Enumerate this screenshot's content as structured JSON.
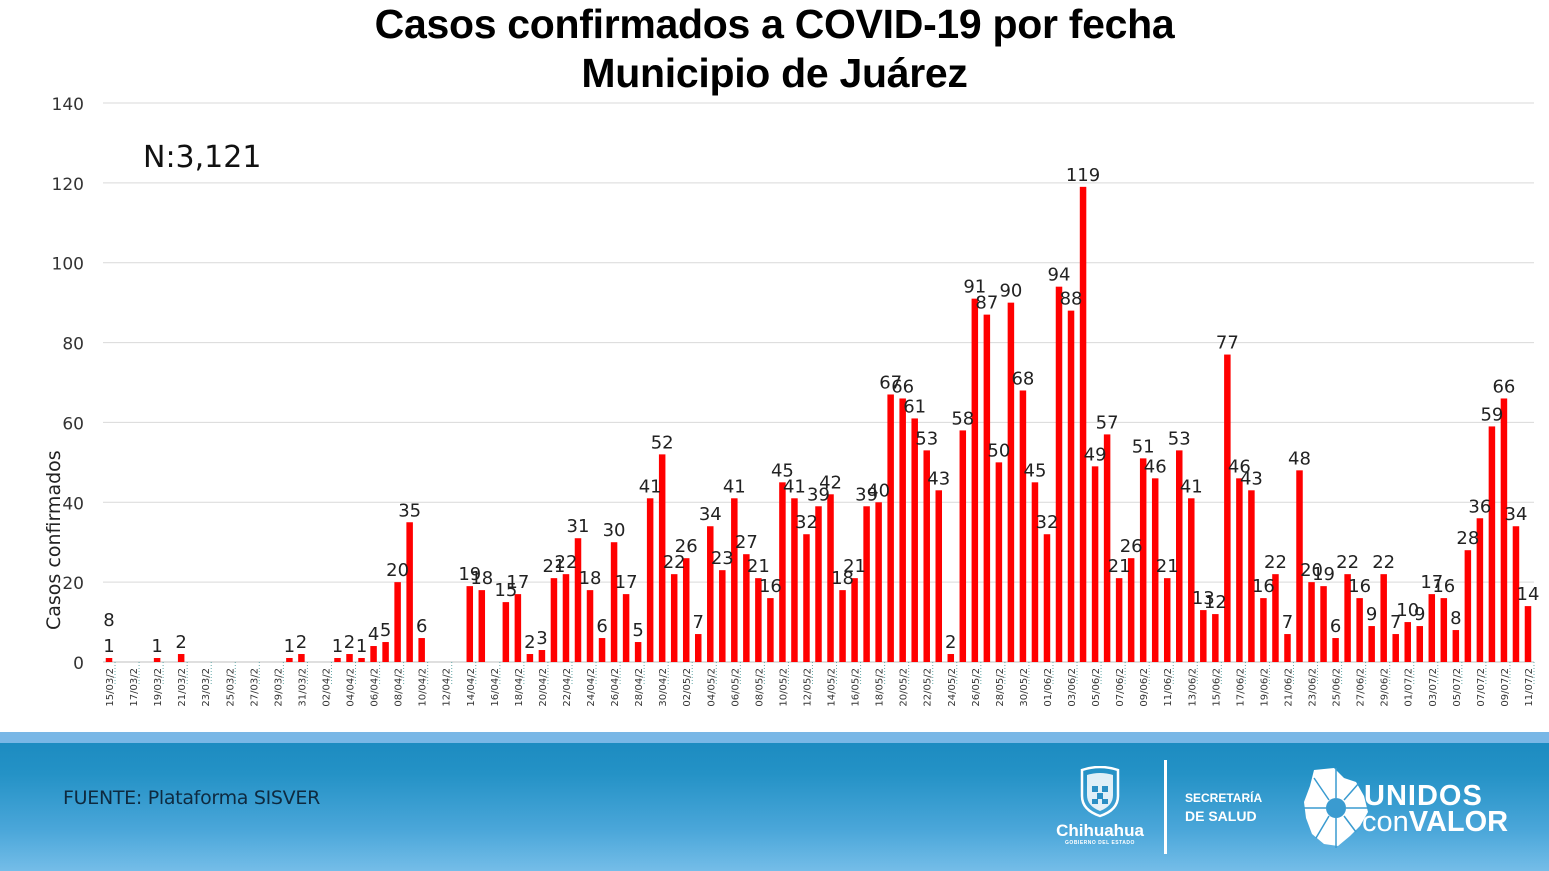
{
  "chart_data": {
    "type": "bar",
    "title": "Casos confirmados a COVID-19 por fecha",
    "subtitle": "Municipio de Juárez",
    "xlabel": "",
    "ylabel": "Casos confirmados",
    "ylim": [
      0,
      140
    ],
    "yticks": [
      0,
      20,
      40,
      60,
      80,
      100,
      120,
      140
    ],
    "grid": true,
    "legend": "none",
    "bar_color": "#ff0000",
    "annotation": "N:3,121",
    "extra_labels": [
      {
        "category": "15/03/2",
        "text": "8"
      }
    ],
    "tick_label_every": 2,
    "categories": [
      "15/03/2",
      "16/03/2",
      "17/03/2",
      "18/03/2",
      "19/03/2",
      "20/03/2",
      "21/03/2",
      "22/03/2",
      "23/03/2",
      "24/03/2",
      "25/03/2",
      "26/03/2",
      "27/03/2",
      "28/03/2",
      "29/03/2",
      "30/03/2",
      "31/03/2",
      "01/04/2",
      "02/04/2",
      "03/04/2",
      "04/04/2",
      "05/04/2",
      "06/04/2",
      "07/04/2",
      "08/04/2",
      "09/04/2",
      "10/04/2",
      "11/04/2",
      "12/04/2",
      "13/04/2",
      "14/04/2",
      "15/04/2",
      "16/04/2",
      "17/04/2",
      "18/04/2",
      "19/04/2",
      "20/04/2",
      "21/04/2",
      "22/04/2",
      "23/04/2",
      "24/04/2",
      "25/04/2",
      "26/04/2",
      "27/04/2",
      "28/04/2",
      "29/04/2",
      "30/04/2",
      "01/05/2",
      "02/05/2",
      "03/05/2",
      "04/05/2",
      "05/05/2",
      "06/05/2",
      "07/05/2",
      "08/05/2",
      "09/05/2",
      "10/05/2",
      "11/05/2",
      "12/05/2",
      "13/05/2",
      "14/05/2",
      "15/05/2",
      "16/05/2",
      "17/05/2",
      "18/05/2",
      "19/05/2",
      "20/05/2",
      "21/05/2",
      "22/05/2",
      "23/05/2",
      "24/05/2",
      "25/05/2",
      "26/05/2",
      "27/05/2",
      "28/05/2",
      "29/05/2",
      "30/05/2",
      "31/05/2",
      "01/06/2",
      "02/06/2",
      "03/06/2",
      "04/06/2",
      "05/06/2",
      "06/06/2",
      "07/06/2",
      "08/06/2",
      "09/06/2",
      "10/06/2",
      "11/06/2",
      "12/06/2",
      "13/06/2",
      "14/06/2",
      "15/06/2",
      "16/06/2",
      "17/06/2",
      "18/06/2",
      "19/06/2",
      "20/06/2",
      "21/06/2",
      "22/06/2",
      "23/06/2",
      "24/06/2",
      "25/06/2",
      "26/06/2",
      "27/06/2",
      "28/06/2",
      "29/06/2",
      "30/06/2",
      "01/07/2",
      "02/07/2",
      "03/07/2",
      "04/07/2",
      "05/07/2",
      "06/07/2",
      "07/07/2",
      "08/07/2",
      "09/07/2",
      "10/07/2",
      "11/07/2"
    ],
    "values": [
      1,
      0,
      0,
      0,
      1,
      0,
      2,
      0,
      0,
      0,
      0,
      0,
      0,
      0,
      0,
      1,
      2,
      0,
      0,
      1,
      2,
      1,
      4,
      5,
      20,
      35,
      6,
      0,
      0,
      0,
      19,
      18,
      0,
      15,
      17,
      2,
      3,
      21,
      22,
      31,
      18,
      6,
      30,
      17,
      5,
      41,
      52,
      22,
      26,
      7,
      34,
      23,
      41,
      27,
      21,
      16,
      45,
      41,
      32,
      39,
      42,
      18,
      21,
      39,
      40,
      67,
      66,
      61,
      53,
      43,
      2,
      58,
      91,
      87,
      50,
      90,
      68,
      45,
      32,
      94,
      88,
      119,
      49,
      57,
      21,
      26,
      51,
      46,
      21,
      53,
      41,
      13,
      12,
      77,
      46,
      43,
      16,
      22,
      7,
      48,
      20,
      19,
      6,
      22,
      16,
      9,
      22,
      7,
      10,
      9,
      17,
      16,
      8,
      28,
      36,
      59,
      66,
      34,
      14
    ]
  },
  "header": {
    "title_line1": "Casos confirmados a COVID-19 por fecha",
    "title_line2": "Municipio de Juárez"
  },
  "footer": {
    "source": "FUENTE: Plataforma SISVER",
    "logo_chihuahua": "Chihuahua",
    "logo_chihuahua_sub": "GOBIERNO DEL ESTADO",
    "secretaria_line1": "SECRETARÍA",
    "secretaria_line2": "DE SALUD",
    "unidos_line1": "UNIDOS",
    "unidos_line2a": "con",
    "unidos_line2b": "VALOR"
  }
}
